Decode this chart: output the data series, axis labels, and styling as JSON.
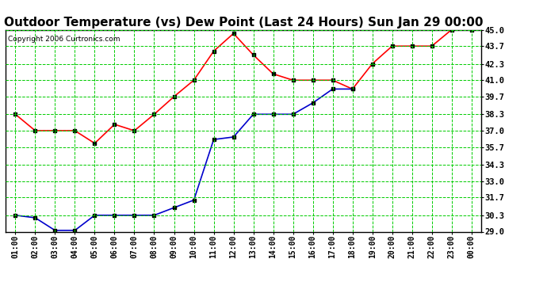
{
  "title": "Outdoor Temperature (vs) Dew Point (Last 24 Hours) Sun Jan 29 00:00",
  "copyright": "Copyright 2006 Curtronics.com",
  "x_labels": [
    "01:00",
    "02:00",
    "03:00",
    "04:00",
    "05:00",
    "06:00",
    "07:00",
    "08:00",
    "09:00",
    "10:00",
    "11:00",
    "12:00",
    "13:00",
    "14:00",
    "15:00",
    "16:00",
    "17:00",
    "18:00",
    "19:00",
    "20:00",
    "21:00",
    "22:00",
    "23:00",
    "00:00"
  ],
  "temp_data": [
    38.3,
    37.0,
    37.0,
    37.0,
    36.0,
    37.5,
    37.0,
    38.3,
    39.7,
    41.0,
    43.3,
    44.7,
    43.0,
    41.5,
    41.0,
    41.0,
    41.0,
    40.3,
    42.3,
    43.7,
    43.7,
    43.7,
    45.0,
    45.0
  ],
  "dew_data": [
    30.3,
    30.1,
    29.1,
    29.1,
    30.3,
    30.3,
    30.3,
    30.3,
    30.9,
    31.5,
    36.3,
    36.5,
    38.3,
    38.3,
    38.3,
    39.2,
    40.3,
    40.3,
    null,
    null,
    null,
    null,
    null,
    null
  ],
  "ylim": [
    29.0,
    45.0
  ],
  "yticks": [
    29.0,
    30.3,
    31.7,
    33.0,
    34.3,
    35.7,
    37.0,
    38.3,
    39.7,
    41.0,
    42.3,
    43.7,
    45.0
  ],
  "temp_color": "#ff0000",
  "dew_color": "#0000cc",
  "bg_color": "#ffffff",
  "grid_color": "#00cc00",
  "title_fontsize": 11,
  "marker": "s",
  "marker_size": 3,
  "marker_color_temp": "#000000",
  "marker_color_dew": "#000000"
}
